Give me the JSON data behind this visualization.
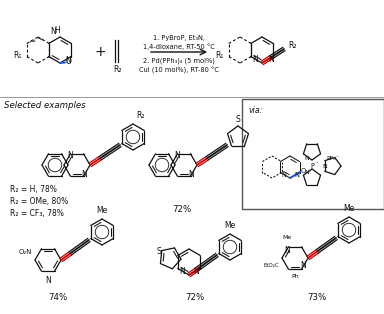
{
  "background": "#ffffff",
  "step1_text": "1. PyBroP, Et₃N,\n1,4-dioxane, RT-50 °C",
  "step2_text": "2. Pd(PPh₃)₄ (5 mol%)\nCuI (10 mol%), RT-80 °C",
  "selected_examples": "Selected examples",
  "via_text": "via:",
  "r2_labels": "R₂ = H, 78%\nR₂ = OMe, 80%\nR₂ = CF₃, 78%",
  "yield1": "72%",
  "yield2": "74%",
  "yield3": "72%",
  "yield4": "73%",
  "red": "#cc0000",
  "blue": "#1a56e8",
  "black": "#111111",
  "ring_r": 13,
  "small_r": 9
}
